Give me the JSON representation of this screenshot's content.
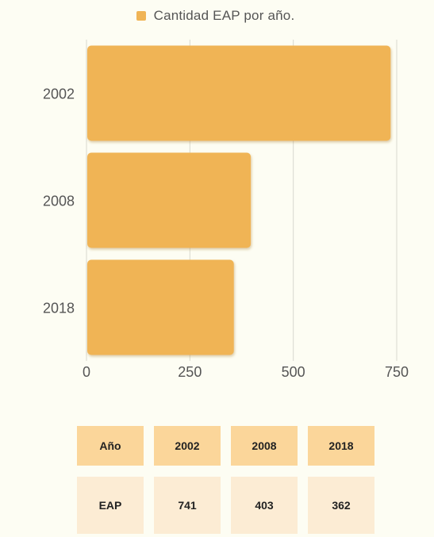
{
  "legend": {
    "label": "Cantidad EAP por año.",
    "color": "#f0b455"
  },
  "chart_data": {
    "type": "bar",
    "orientation": "horizontal",
    "categories": [
      "2002",
      "2008",
      "2018"
    ],
    "series": [
      {
        "name": "Cantidad EAP por año.",
        "values": [
          741,
          403,
          362
        ]
      }
    ],
    "xlim": [
      0,
      750
    ],
    "xticks": [
      "0",
      "250",
      "500",
      "750"
    ],
    "grid": true,
    "legend_position": "top",
    "bar_color": "#f0b455"
  },
  "table": {
    "header": [
      "Año",
      "2002",
      "2008",
      "2018"
    ],
    "row": [
      "EAP",
      "741",
      "403",
      "362"
    ]
  }
}
